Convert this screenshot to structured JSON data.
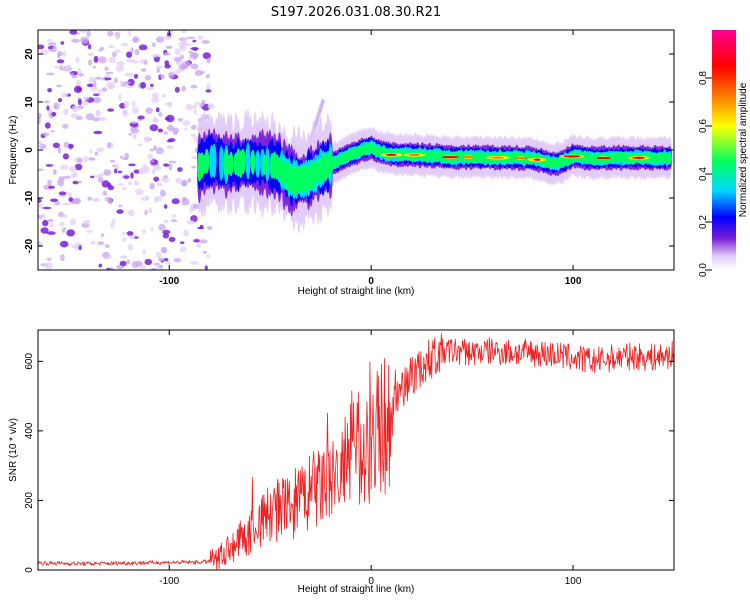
{
  "title": "S197.2026.031.08.30.R21",
  "chart_data": [
    {
      "type": "heatmap",
      "title": "S197.2026.031.08.30.R21",
      "xlabel": "Height of straight line (km)",
      "ylabel": "Frequency (Hz)",
      "xlim": [
        -165,
        150
      ],
      "ylim": [
        -25,
        25
      ],
      "xticks": [
        -100,
        0,
        100
      ],
      "yticks": [
        -20,
        -10,
        0,
        10,
        20
      ],
      "colorbar": {
        "label": "Normalized spectral amplitude",
        "range": [
          0,
          1
        ],
        "ticks": [
          "0.0",
          "0.2",
          "0.4",
          "0.6",
          "0.8"
        ],
        "colors": [
          "#ffffff",
          "#e0c8f8",
          "#7a20d8",
          "#0000ff",
          "#00d8ff",
          "#00ff60",
          "#ffff00",
          "#ff8000",
          "#ff0000",
          "#ff0090"
        ]
      },
      "ridge": {
        "x": [
          -85,
          -80,
          -70,
          -60,
          -50,
          -45,
          -40,
          -35,
          -30,
          -25,
          -20,
          -15,
          -10,
          -5,
          0,
          5,
          10,
          20,
          30,
          40,
          50,
          60,
          70,
          80,
          90,
          95,
          100,
          110,
          120,
          130,
          140,
          148
        ],
        "frequency": [
          -3.5,
          -2,
          -3,
          -2.5,
          -3,
          -4,
          -6,
          -6.5,
          -5.5,
          -4,
          -3,
          -2,
          -1,
          0,
          0.5,
          -0.5,
          -1,
          -1,
          -1.2,
          -1.5,
          -1.5,
          -1.6,
          -1.6,
          -1.8,
          -2.8,
          -2.5,
          -1.2,
          -1.8,
          -1.6,
          -1.6,
          -1.7,
          -1.7
        ]
      },
      "noise_region": {
        "x": [
          -165,
          -80
        ],
        "frequency": [
          -25,
          25
        ]
      },
      "artifact": {
        "x": [
          -30,
          -24
        ],
        "frequency": [
          2,
          10
        ]
      }
    },
    {
      "type": "line",
      "xlabel": "Height of straight line (km)",
      "ylabel": "SNR (10 * v/v)",
      "xlim": [
        -165,
        150
      ],
      "ylim": [
        0,
        690
      ],
      "xticks": [
        -100,
        0,
        100
      ],
      "yticks": [
        0,
        200,
        400,
        600
      ],
      "series": [
        {
          "name": "SNR",
          "color": "#ee2222",
          "x": [
            -165,
            -140,
            -120,
            -100,
            -85,
            -80,
            -75,
            -70,
            -65,
            -60,
            -55,
            -50,
            -45,
            -40,
            -35,
            -30,
            -25,
            -20,
            -15,
            -10,
            -5,
            0,
            5,
            10,
            15,
            20,
            25,
            30,
            35,
            40,
            50,
            60,
            70,
            80,
            90,
            100,
            110,
            120,
            130,
            140,
            150
          ],
          "values": [
            20,
            18,
            20,
            22,
            22,
            25,
            40,
            60,
            85,
            110,
            140,
            160,
            175,
            180,
            200,
            220,
            240,
            250,
            280,
            320,
            350,
            380,
            400,
            460,
            520,
            560,
            580,
            610,
            625,
            630,
            625,
            630,
            625,
            625,
            620,
            610,
            600,
            610,
            615,
            610,
            620
          ]
        }
      ]
    }
  ]
}
